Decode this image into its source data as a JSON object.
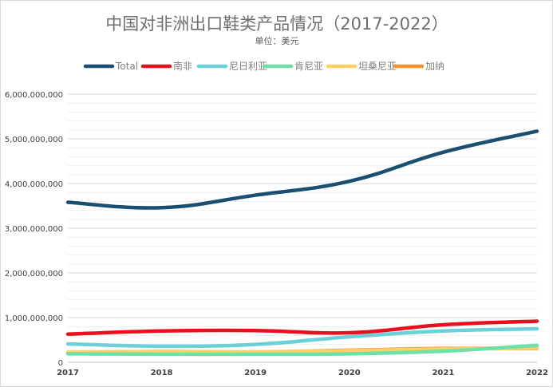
{
  "chart_data": {
    "type": "line",
    "title": "中国对非洲出口鞋类产品情况（2017-2022）",
    "subtitle": "单位：美元",
    "xlabel": "",
    "ylabel": "",
    "x": [
      "2017",
      "2018",
      "2019",
      "2020",
      "2021",
      "2022"
    ],
    "ylim": [
      0,
      6000000000
    ],
    "yticks": [
      "0",
      "1,000,000,000",
      "2,000,000,000",
      "3,000,000,000",
      "4,000,000,000",
      "5,000,000,000",
      "6,000,000,000"
    ],
    "grid": true,
    "legend_position": "top",
    "series": [
      {
        "name": "Total",
        "color": "#1b4f72",
        "values": [
          3580000000,
          3460000000,
          3740000000,
          4050000000,
          4700000000,
          5170000000
        ]
      },
      {
        "name": "南非",
        "color": "#e8101e",
        "values": [
          630000000,
          700000000,
          710000000,
          660000000,
          840000000,
          920000000
        ]
      },
      {
        "name": "尼日利亚",
        "color": "#6cd0d8",
        "values": [
          410000000,
          360000000,
          400000000,
          570000000,
          700000000,
          750000000
        ]
      },
      {
        "name": "肯尼亚",
        "color": "#6ee0a8",
        "values": [
          190000000,
          180000000,
          180000000,
          190000000,
          250000000,
          380000000
        ]
      },
      {
        "name": "坦桑尼亚",
        "color": "#ffd066",
        "values": [
          230000000,
          240000000,
          230000000,
          260000000,
          300000000,
          320000000
        ]
      },
      {
        "name": "加纳",
        "color": "#f7932e",
        "values": [
          220000000,
          240000000,
          230000000,
          270000000,
          310000000,
          310000000
        ]
      }
    ]
  }
}
